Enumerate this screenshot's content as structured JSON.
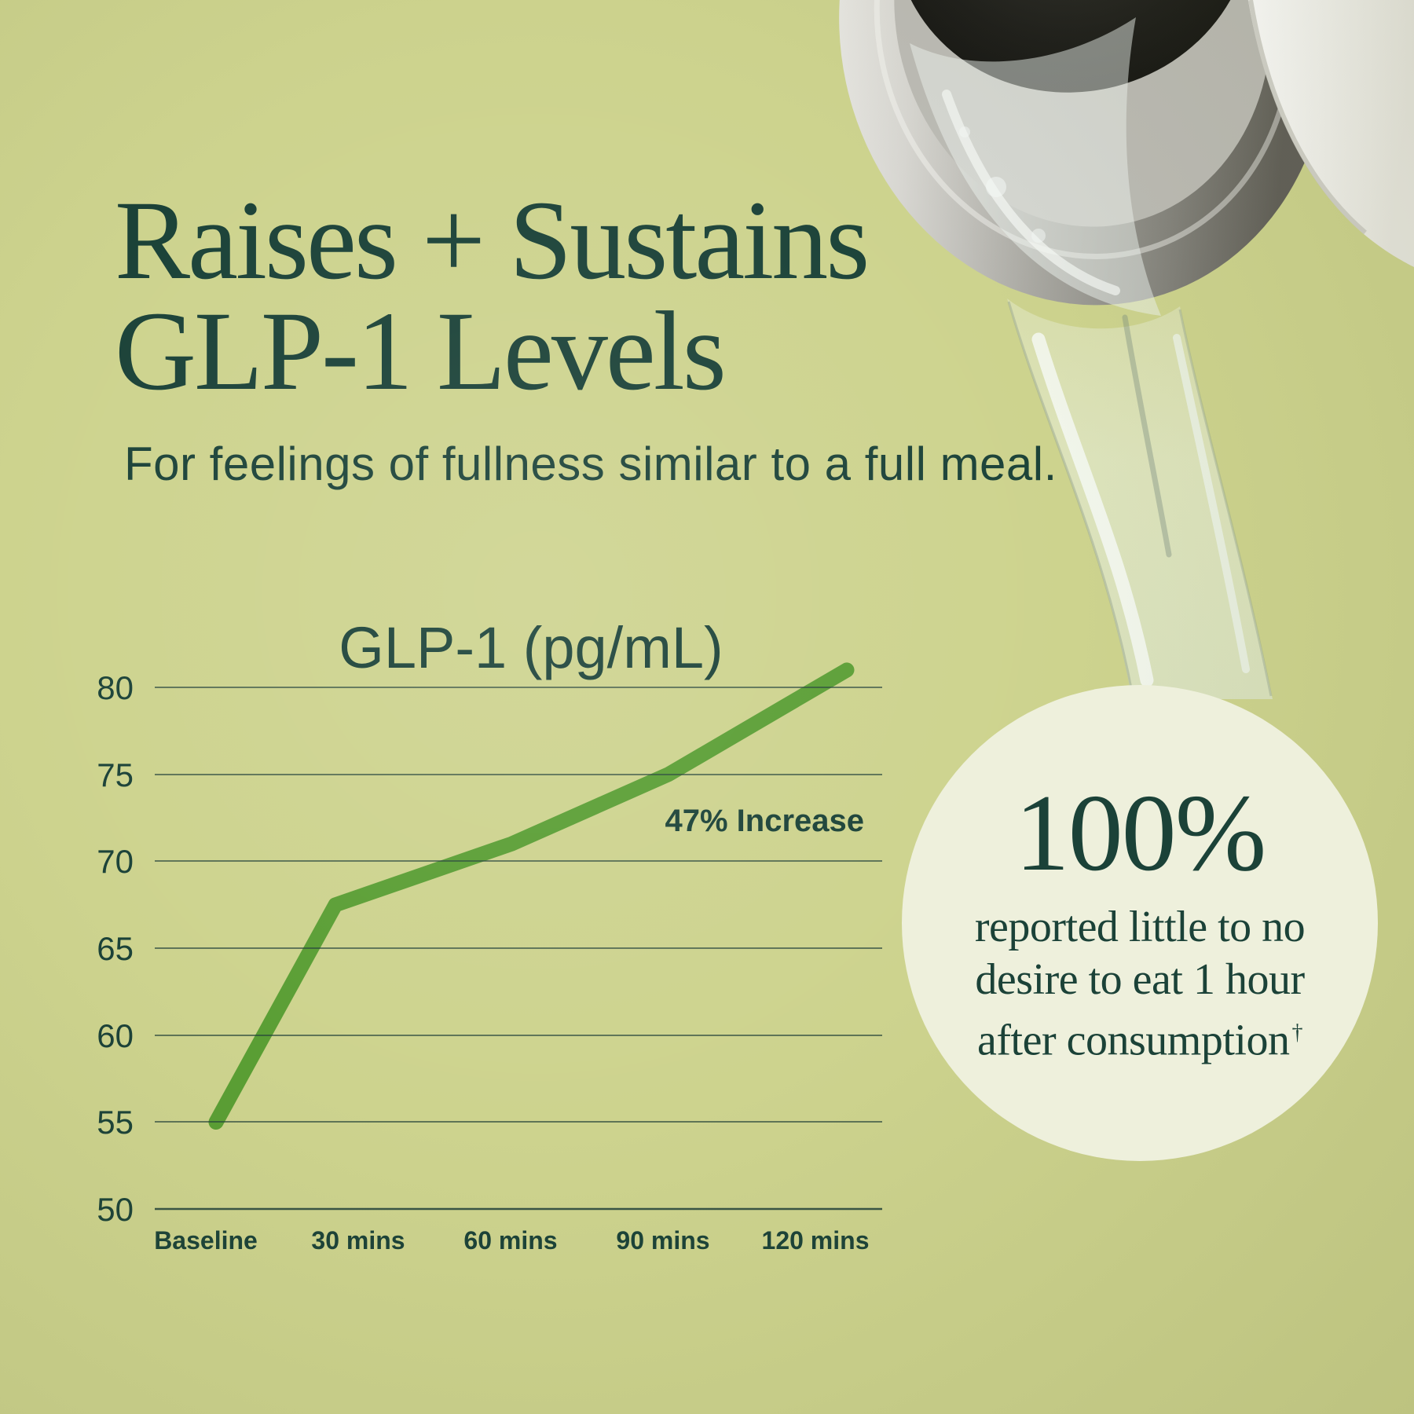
{
  "header": {
    "title_line1": "Raises + Sustains",
    "title_line2": "GLP-1 Levels",
    "subtitle": "For feelings of fullness similar to a full meal."
  },
  "chart": {
    "title": "GLP-1 (pg/mL)",
    "annotation": "47% Increase",
    "y_ticks": [
      "80",
      "75",
      "70",
      "65",
      "60",
      "55",
      "50"
    ],
    "x_ticks": [
      "Baseline",
      "30 mins",
      "60 mins",
      "90 mins",
      "120 mins"
    ]
  },
  "badge": {
    "headline": "100%",
    "line1": "reported little to no",
    "line2": "desire to eat 1 hour",
    "line3": "after consumption",
    "dagger": "†"
  },
  "chart_data": {
    "type": "line",
    "title": "GLP-1 (pg/mL)",
    "ylabel": "GLP-1 (pg/mL)",
    "categories": [
      "Baseline",
      "30 mins",
      "60 mins",
      "90 mins",
      "120 mins"
    ],
    "values": [
      55,
      67.5,
      71,
      75,
      81
    ],
    "ylim": [
      50,
      82
    ],
    "yticks": [
      50,
      55,
      60,
      65,
      70,
      75,
      80
    ],
    "annotation": "47% Increase",
    "grid": true,
    "legend": "none",
    "line_color": "#5a9e34"
  },
  "colors": {
    "background": "#cdd38e",
    "text_green": "#1b4238",
    "line_green": "#5a9e34",
    "gridline": "#24433a",
    "badge_background": "#eef0dc"
  }
}
